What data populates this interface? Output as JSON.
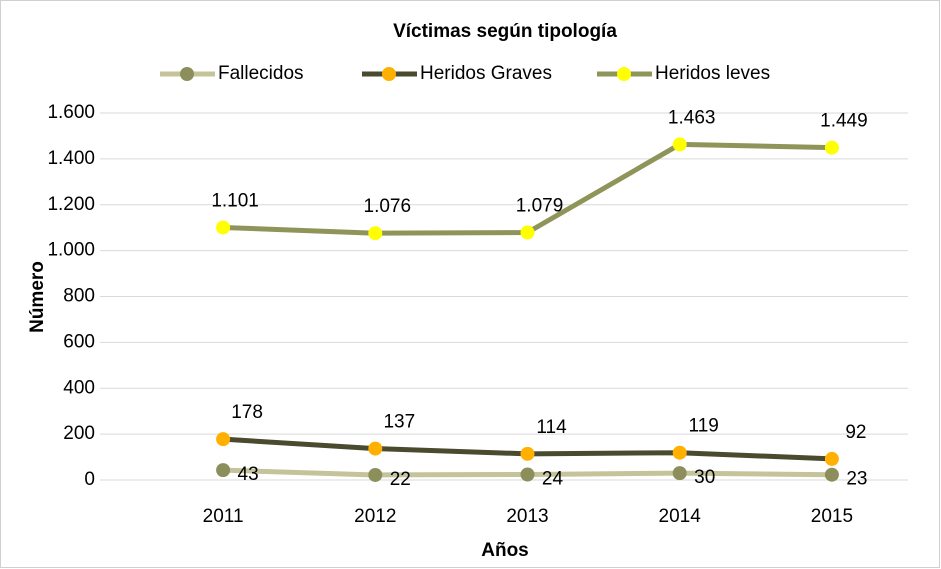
{
  "chart_data": {
    "type": "line",
    "title": "Víctimas según tipología",
    "x_label": "Años",
    "y_label": "Número",
    "categories": [
      "2011",
      "2012",
      "2013",
      "2014",
      "2015"
    ],
    "series": [
      {
        "name": "Fallecidos",
        "color": "#c4c39a",
        "marker_color": "#8c8f5c",
        "values": [
          43,
          22,
          24,
          30,
          23
        ]
      },
      {
        "name": "Heridos Graves",
        "color": "#4a4a2e",
        "marker_color": "#ffb000",
        "values": [
          178,
          137,
          114,
          119,
          92
        ]
      },
      {
        "name": "Heridos leves",
        "color": "#8f9559",
        "marker_color": "#ffff00",
        "values": [
          1101,
          1076,
          1079,
          1463,
          1449
        ],
        "value_labels": [
          "1.101",
          "1.076",
          "1.079",
          "1.463",
          "1.449"
        ]
      }
    ],
    "ylim": [
      0,
      1600
    ],
    "yticks": [
      0,
      200,
      400,
      600,
      800,
      {
        "value": 1000,
        "label": "1.000"
      },
      {
        "value": 1200,
        "label": "1.200"
      },
      {
        "value": 1400,
        "label": "1.400"
      },
      {
        "value": 1600,
        "label": "1.600"
      }
    ],
    "grid": true,
    "legend": "top"
  }
}
